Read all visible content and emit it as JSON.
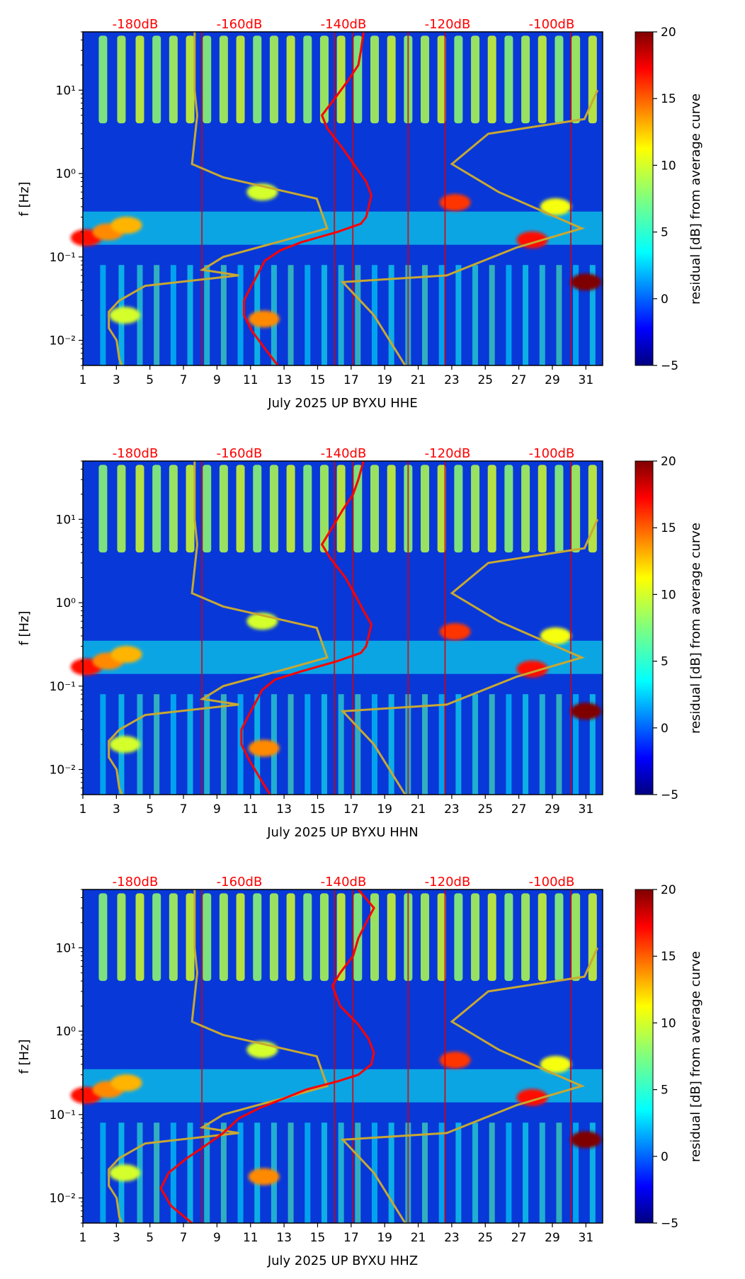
{
  "figure": {
    "panels": [
      {
        "xlabel": "July 2025 UP BYXU  HHE"
      },
      {
        "xlabel": "July 2025 UP BYXU  HHN"
      },
      {
        "xlabel": "July 2025 UP BYXU  HHZ"
      }
    ],
    "ylabel": "f [Hz]",
    "colorbar_label": "residual [dB] from average curve",
    "colorbar_ticks": [
      "20",
      "15",
      "10",
      "5",
      "0",
      "−5"
    ],
    "colorbar_range": [
      -5,
      20
    ],
    "colormap": "jet",
    "x_tick_labels": [
      "1",
      "3",
      "5",
      "7",
      "9",
      "11",
      "13",
      "15",
      "17",
      "19",
      "21",
      "23",
      "25",
      "27",
      "29",
      "31"
    ],
    "y_tick_labels": [
      "10¹",
      "10⁰",
      "10⁻¹",
      "10⁻²"
    ],
    "db_tick_labels": [
      "-180dB",
      "-160dB",
      "-140dB",
      "-120dB",
      "-100dB"
    ],
    "colors": {
      "psd_curve": "#ff0000",
      "noise_model": "#c8a832",
      "db_labels": "#ff0000"
    }
  },
  "chart_data": [
    {
      "type": "heatmap",
      "channel": "HHE",
      "xlabel": "July 2025 UP BYXU  HHE",
      "ylabel": "f [Hz]",
      "x_range_days": [
        1,
        32
      ],
      "y_range_hz": [
        0.005,
        50
      ],
      "y_scale": "log",
      "colorbar_range_db": [
        -5,
        20
      ],
      "psd_curve_db_axis": [
        -190,
        -90
      ],
      "psd_curve": [
        {
          "f": 50,
          "db": -136
        },
        {
          "f": 30,
          "db": -136.5
        },
        {
          "f": 20,
          "db": -137
        },
        {
          "f": 13,
          "db": -139
        },
        {
          "f": 8,
          "db": -141.5
        },
        {
          "f": 5,
          "db": -144
        },
        {
          "f": 3.5,
          "db": -143
        },
        {
          "f": 2,
          "db": -140
        },
        {
          "f": 1.2,
          "db": -137.5
        },
        {
          "f": 0.8,
          "db": -135.5
        },
        {
          "f": 0.55,
          "db": -134.5
        },
        {
          "f": 0.4,
          "db": -135
        },
        {
          "f": 0.3,
          "db": -135.5
        },
        {
          "f": 0.25,
          "db": -136.5
        },
        {
          "f": 0.2,
          "db": -141
        },
        {
          "f": 0.15,
          "db": -148
        },
        {
          "f": 0.12,
          "db": -152
        },
        {
          "f": 0.09,
          "db": -155
        },
        {
          "f": 0.06,
          "db": -156.5
        },
        {
          "f": 0.04,
          "db": -158
        },
        {
          "f": 0.03,
          "db": -159
        },
        {
          "f": 0.02,
          "db": -159
        },
        {
          "f": 0.013,
          "db": -157.5
        },
        {
          "f": 0.008,
          "db": -155
        },
        {
          "f": 0.005,
          "db": -152.5
        }
      ]
    },
    {
      "type": "heatmap",
      "channel": "HHN",
      "xlabel": "July 2025 UP BYXU  HHN",
      "ylabel": "f [Hz]",
      "x_range_days": [
        1,
        32
      ],
      "y_range_hz": [
        0.005,
        50
      ],
      "y_scale": "log",
      "colorbar_range_db": [
        -5,
        20
      ],
      "psd_curve_db_axis": [
        -190,
        -90
      ],
      "psd_curve": [
        {
          "f": 50,
          "db": -136
        },
        {
          "f": 30,
          "db": -137
        },
        {
          "f": 20,
          "db": -138
        },
        {
          "f": 13,
          "db": -140
        },
        {
          "f": 8,
          "db": -142
        },
        {
          "f": 5,
          "db": -144
        },
        {
          "f": 3.5,
          "db": -142.5
        },
        {
          "f": 2,
          "db": -139.5
        },
        {
          "f": 1.2,
          "db": -137.5
        },
        {
          "f": 0.8,
          "db": -136
        },
        {
          "f": 0.55,
          "db": -134.5
        },
        {
          "f": 0.4,
          "db": -135
        },
        {
          "f": 0.3,
          "db": -135.5
        },
        {
          "f": 0.25,
          "db": -136.5
        },
        {
          "f": 0.2,
          "db": -141
        },
        {
          "f": 0.15,
          "db": -148
        },
        {
          "f": 0.12,
          "db": -153
        },
        {
          "f": 0.09,
          "db": -155.5
        },
        {
          "f": 0.06,
          "db": -157
        },
        {
          "f": 0.04,
          "db": -158.5
        },
        {
          "f": 0.03,
          "db": -159.5
        },
        {
          "f": 0.02,
          "db": -159.5
        },
        {
          "f": 0.013,
          "db": -158
        },
        {
          "f": 0.008,
          "db": -156
        },
        {
          "f": 0.005,
          "db": -154
        }
      ]
    },
    {
      "type": "heatmap",
      "channel": "HHZ",
      "xlabel": "July 2025 UP BYXU  HHZ",
      "ylabel": "f [Hz]",
      "x_range_days": [
        1,
        32
      ],
      "y_range_hz": [
        0.005,
        50
      ],
      "y_scale": "log",
      "colorbar_range_db": [
        -5,
        20
      ],
      "psd_curve_db_axis": [
        -190,
        -90
      ],
      "psd_curve": [
        {
          "f": 50,
          "db": -137
        },
        {
          "f": 30,
          "db": -134
        },
        {
          "f": 20,
          "db": -135.5
        },
        {
          "f": 13,
          "db": -137
        },
        {
          "f": 8,
          "db": -138
        },
        {
          "f": 5,
          "db": -140.5
        },
        {
          "f": 3.5,
          "db": -142
        },
        {
          "f": 2,
          "db": -140.5
        },
        {
          "f": 1.2,
          "db": -137
        },
        {
          "f": 0.8,
          "db": -135
        },
        {
          "f": 0.55,
          "db": -134
        },
        {
          "f": 0.4,
          "db": -134.5
        },
        {
          "f": 0.3,
          "db": -137
        },
        {
          "f": 0.25,
          "db": -141
        },
        {
          "f": 0.2,
          "db": -147
        },
        {
          "f": 0.15,
          "db": -152
        },
        {
          "f": 0.12,
          "db": -156
        },
        {
          "f": 0.09,
          "db": -160
        },
        {
          "f": 0.06,
          "db": -163
        },
        {
          "f": 0.04,
          "db": -167
        },
        {
          "f": 0.03,
          "db": -170
        },
        {
          "f": 0.02,
          "db": -173.5
        },
        {
          "f": 0.013,
          "db": -175
        },
        {
          "f": 0.008,
          "db": -173
        },
        {
          "f": 0.005,
          "db": -169
        }
      ]
    }
  ],
  "noise_model_curves": {
    "db_axis": [
      -190,
      -90
    ],
    "low": [
      {
        "f": 50,
        "db": -168.5
      },
      {
        "f": 10,
        "db": -168.5
      },
      {
        "f": 5,
        "db": -168
      },
      {
        "f": 1.3,
        "db": -169
      },
      {
        "f": 0.9,
        "db": -163
      },
      {
        "f": 0.5,
        "db": -145
      },
      {
        "f": 0.22,
        "db": -143
      },
      {
        "f": 0.16,
        "db": -151
      },
      {
        "f": 0.1,
        "db": -163
      },
      {
        "f": 0.07,
        "db": -167
      },
      {
        "f": 0.06,
        "db": -160
      },
      {
        "f": 0.045,
        "db": -178
      },
      {
        "f": 0.03,
        "db": -183
      },
      {
        "f": 0.022,
        "db": -185
      },
      {
        "f": 0.014,
        "db": -185
      },
      {
        "f": 0.01,
        "db": -183.5
      },
      {
        "f": 0.006,
        "db": -183
      },
      {
        "f": 0.005,
        "db": -182.5
      }
    ],
    "high": [
      {
        "f": 10,
        "db": -91
      },
      {
        "f": 4.5,
        "db": -93.5
      },
      {
        "f": 3,
        "db": -112
      },
      {
        "f": 1.3,
        "db": -119
      },
      {
        "f": 0.6,
        "db": -110
      },
      {
        "f": 0.22,
        "db": -94
      },
      {
        "f": 0.13,
        "db": -106.5
      },
      {
        "f": 0.06,
        "db": -120
      },
      {
        "f": 0.05,
        "db": -140
      },
      {
        "f": 0.02,
        "db": -134
      },
      {
        "f": 0.005,
        "db": -128
      }
    ]
  },
  "band_features": {
    "day_bands": [
      2.2,
      3.3,
      4.4,
      5.4,
      6.4,
      7.4,
      8.4,
      9.4,
      10.4,
      11.4,
      12.4,
      13.4,
      14.4,
      15.4,
      16.4,
      17.4,
      18.4,
      19.4,
      20.4,
      21.4,
      22.4,
      23.4,
      24.4,
      25.4,
      26.4,
      27.4,
      28.4,
      29.4,
      30.4,
      31.4
    ],
    "spike_days": [
      8.1,
      16.0,
      17.1,
      20.4,
      22.6,
      30.1
    ],
    "blobs": [
      {
        "day": 1.2,
        "f": 0.17,
        "level": 17
      },
      {
        "day": 2.5,
        "f": 0.2,
        "level": 14
      },
      {
        "day": 3.6,
        "f": 0.24,
        "level": 13
      },
      {
        "day": 11.7,
        "f": 0.6,
        "level": 10
      },
      {
        "day": 23.2,
        "f": 0.45,
        "level": 16
      },
      {
        "day": 27.8,
        "f": 0.16,
        "level": 17
      },
      {
        "day": 29.2,
        "f": 0.4,
        "level": 11
      },
      {
        "day": 11.8,
        "f": 0.018,
        "level": 14
      },
      {
        "day": 3.5,
        "f": 0.02,
        "level": 10
      },
      {
        "day": 31.0,
        "f": 0.05,
        "level": 20
      }
    ]
  }
}
